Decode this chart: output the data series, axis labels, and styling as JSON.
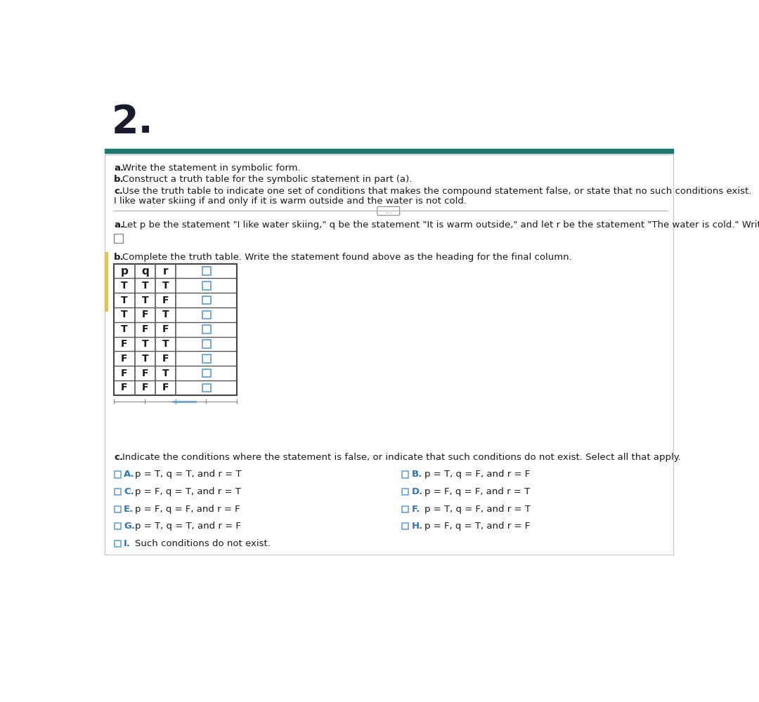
{
  "title_number": "2.",
  "title_color": "#1a1a2e",
  "teal_bar_color": "#1a7a6e",
  "background_color": "#ffffff",
  "border_color": "#cccccc",
  "left_accent_color": "#e8c840",
  "instructions": [
    "a. Write the statement in symbolic form.",
    "b. Construct a truth table for the symbolic statement in part (a).",
    "c. Use the truth table to indicate one set of conditions that makes the compound statement false, or state that no such conditions exist."
  ],
  "main_statement": "I like water skiing if and only if it is warm outside and the water is not cold.",
  "part_a_label": "a.",
  "part_a_text": "Let p be the statement \"I like water skiing,\" q be the statement \"It is warm outside,\" and let r be the statement \"The water is cold.\" Write the statement above in symbolic form.",
  "part_b_label": "b.",
  "part_b_text": "Complete the truth table. Write the statement found above as the heading for the final column.",
  "table_headers": [
    "p",
    "q",
    "r",
    ""
  ],
  "table_rows": [
    [
      "T",
      "T",
      "T"
    ],
    [
      "T",
      "T",
      "F"
    ],
    [
      "T",
      "F",
      "T"
    ],
    [
      "T",
      "F",
      "F"
    ],
    [
      "F",
      "T",
      "T"
    ],
    [
      "F",
      "T",
      "F"
    ],
    [
      "F",
      "F",
      "T"
    ],
    [
      "F",
      "F",
      "F"
    ]
  ],
  "part_c_label": "c.",
  "part_c_text": "Indicate the conditions where the statement is false, or indicate that such conditions do not exist. Select all that apply.",
  "options_left": [
    [
      "A.",
      "p = T, q = T, and r = T"
    ],
    [
      "C.",
      "p = F, q = T, and r = T"
    ],
    [
      "E.",
      "p = F, q = F, and r = F"
    ],
    [
      "G.",
      "p = T, q = T, and r = F"
    ]
  ],
  "options_right": [
    [
      "B.",
      "p = T, q = F, and r = F"
    ],
    [
      "D.",
      "p = F, q = F, and r = T"
    ],
    [
      "F.",
      "p = T, q = F, and r = T"
    ],
    [
      "H.",
      "p = F, q = T, and r = F"
    ]
  ],
  "option_i": [
    "I.",
    "Such conditions do not exist."
  ],
  "checkbox_color": "#5b9bd5",
  "option_label_color": "#2e75b6",
  "text_color": "#1a1a1a"
}
